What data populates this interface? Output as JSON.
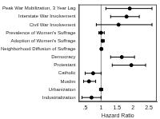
{
  "chart_data": {
    "type": "scatter",
    "orientation": "horizontal",
    "x_label": "Hazard Ratio",
    "categories": [
      "Peak War Mobilization, 3 Year Lag",
      "Interstate War Involvement",
      "Civil War Involvement",
      "Prevalence of Women's Suffrage",
      "Adoption of Women's Suffrage",
      "Neighborhood Diffusion of Suffrage",
      "Democracy",
      "Protestant",
      "Catholic",
      "Muslim",
      "Urbanization",
      "Industrialization"
    ],
    "values": [
      1.9,
      1.8,
      1.55,
      1.0,
      1.05,
      1.01,
      1.65,
      1.95,
      0.75,
      0.62,
      1.0,
      0.7
    ],
    "ci_lower": [
      1.15,
      1.3,
      0.85,
      0.93,
      1.01,
      0.98,
      1.3,
      1.35,
      0.5,
      0.45,
      0.95,
      0.4
    ],
    "ci_upper": [
      2.6,
      2.2,
      2.6,
      1.1,
      1.1,
      1.04,
      2.05,
      2.4,
      1.0,
      0.83,
      1.05,
      1.0
    ],
    "reference_line": 1,
    "color": "#000000",
    "marker": "circle",
    "xlim": [
      0.3,
      2.75
    ],
    "xticks": [
      {
        "value": 0.5,
        "label": ".5"
      },
      1,
      1.5,
      2,
      2.5
    ],
    "grid": false
  }
}
